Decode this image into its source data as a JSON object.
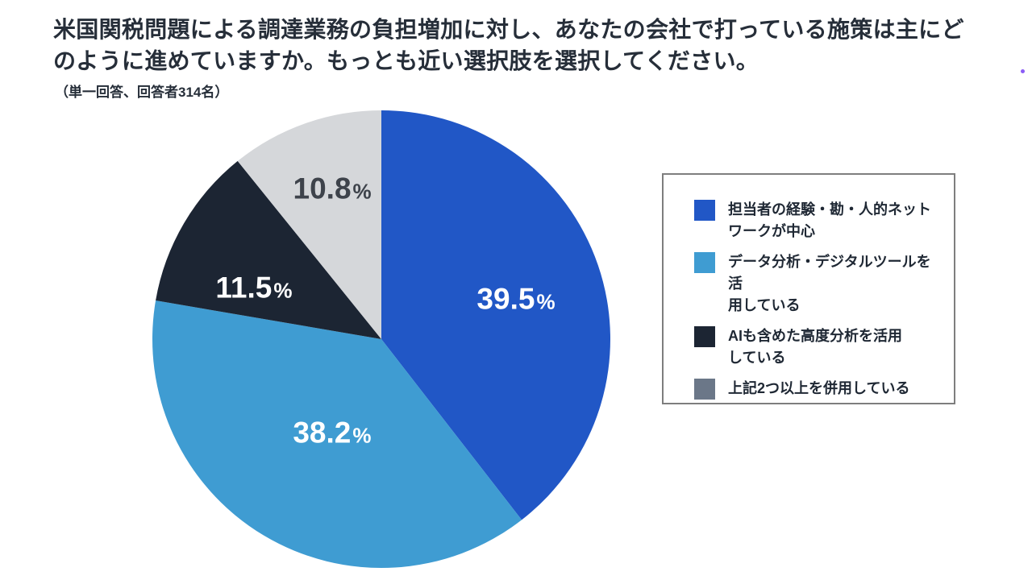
{
  "page": {
    "background": "#FFFFFF",
    "corner_dot_color": "#8B5CF6"
  },
  "header": {
    "title": "米国関税問題による調達業務の負担増加に対し、あなたの会社で打っている施策は主にどのように進めていますか。もっとも近い選択肢を選択してください。",
    "subtitle": "（単一回答、回答者314名）"
  },
  "chart_data": {
    "type": "pie",
    "title": "米国関税問題による調達業務の負担増加に対し、あなたの会社で打っている施策は主にどのように進めていますか。もっとも近い選択肢を選択してください。",
    "subtitle": "（単一回答、回答者314名）",
    "respondents": 314,
    "unit": "%",
    "start_angle": "top",
    "direction": "clockwise",
    "legend_position": "right",
    "percent_sign": "%",
    "slices": [
      {
        "label": "担当者の経験・勘・人的ネットワークが中心",
        "legend_lines": [
          "担当者の経験・勘・人的ネット",
          "ワークが中心"
        ],
        "value": 39.5,
        "color": "#2157C6",
        "label_color": "#FFFFFF"
      },
      {
        "label": "データ分析・デジタルツールを活用している",
        "legend_lines": [
          "データ分析・デジタルツールを活",
          "用している"
        ],
        "value": 38.2,
        "color": "#3F9CD2",
        "label_color": "#FFFFFF"
      },
      {
        "label": "AIも含めた高度分析を活用している",
        "legend_lines": [
          "AIも含めた高度分析を活用",
          "している"
        ],
        "value": 11.5,
        "color": "#1C2533",
        "label_color": "#FFFFFF"
      },
      {
        "label": "上記2つ以上を併用している",
        "legend_lines": [
          "上記2つ以上を併用している"
        ],
        "value": 10.8,
        "color": "#D5D7DA",
        "legend_color": "#6B7788",
        "label_color": "#3E434B"
      }
    ]
  }
}
